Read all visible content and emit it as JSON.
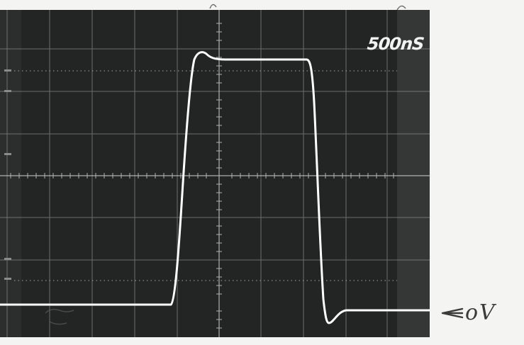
{
  "screen": {
    "timebase": "500nS",
    "background": "#232424",
    "grid_color": "#a8a8a8",
    "trace_color": "#ffffff"
  },
  "annotation": {
    "label": "oV",
    "arrow_icon": "left-arrow-icon",
    "ink_color": "#3a3a3a"
  }
}
